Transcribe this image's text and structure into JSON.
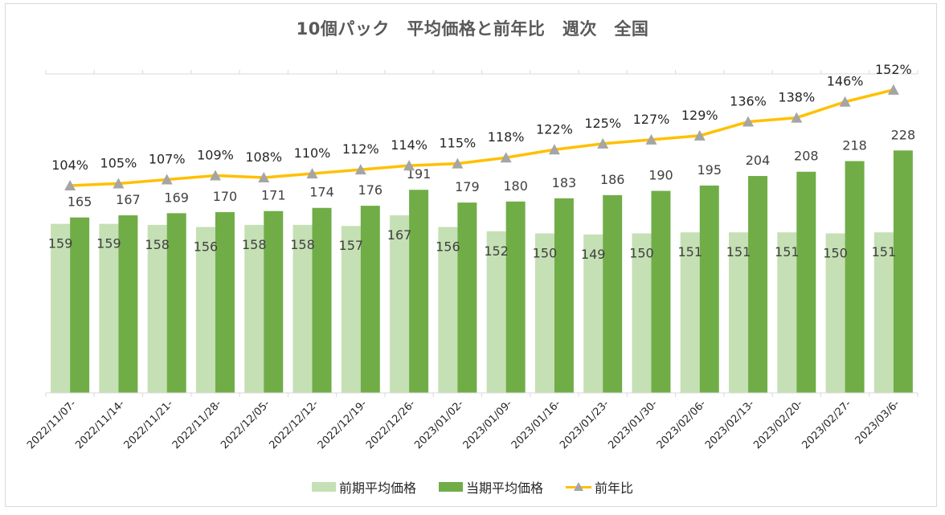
{
  "chart_data": {
    "type": "bar",
    "title": "10個パック　平均価格と前年比　週次　全国",
    "xlabel": "",
    "ylabel": "",
    "ylim": [
      0,
      300
    ],
    "y2lim": [
      0,
      1.6
    ],
    "grid": false,
    "legend_position": "bottom",
    "categories": [
      "2022/11/07-",
      "2022/11/14-",
      "2022/11/21-",
      "2022/11/28-",
      "2022/12/05-",
      "2022/12/12-",
      "2022/12/19-",
      "2022/12/26-",
      "2023/01/02-",
      "2023/01/09-",
      "2023/01/16-",
      "2023/01/23-",
      "2023/01/30-",
      "2023/02/06-",
      "2023/02/13-",
      "2023/02/20-",
      "2023/02/27-",
      "2023/03/6-"
    ],
    "series": [
      {
        "name": "前期平均価格",
        "type": "bar",
        "axis": "primary",
        "color": "#c5e0b4",
        "values": [
          159,
          159,
          158,
          156,
          158,
          158,
          157,
          167,
          156,
          152,
          150,
          149,
          150,
          151,
          151,
          151,
          150,
          151
        ]
      },
      {
        "name": "当期平均価格",
        "type": "bar",
        "axis": "primary",
        "color": "#70ad47",
        "values": [
          165,
          167,
          169,
          170,
          171,
          174,
          176,
          191,
          179,
          180,
          183,
          186,
          190,
          195,
          204,
          208,
          218,
          228
        ]
      },
      {
        "name": "前年比",
        "type": "line",
        "axis": "secondary",
        "color": "#ffc000",
        "marker_color": "#a5a5a5",
        "values": [
          1.04,
          1.05,
          1.07,
          1.09,
          1.08,
          1.1,
          1.12,
          1.14,
          1.15,
          1.18,
          1.22,
          1.25,
          1.27,
          1.29,
          1.36,
          1.38,
          1.46,
          1.52
        ],
        "labels": [
          "104%",
          "105%",
          "107%",
          "109%",
          "108%",
          "110%",
          "112%",
          "114%",
          "115%",
          "118%",
          "122%",
          "125%",
          "127%",
          "129%",
          "136%",
          "138%",
          "146%",
          "152%"
        ]
      }
    ]
  }
}
